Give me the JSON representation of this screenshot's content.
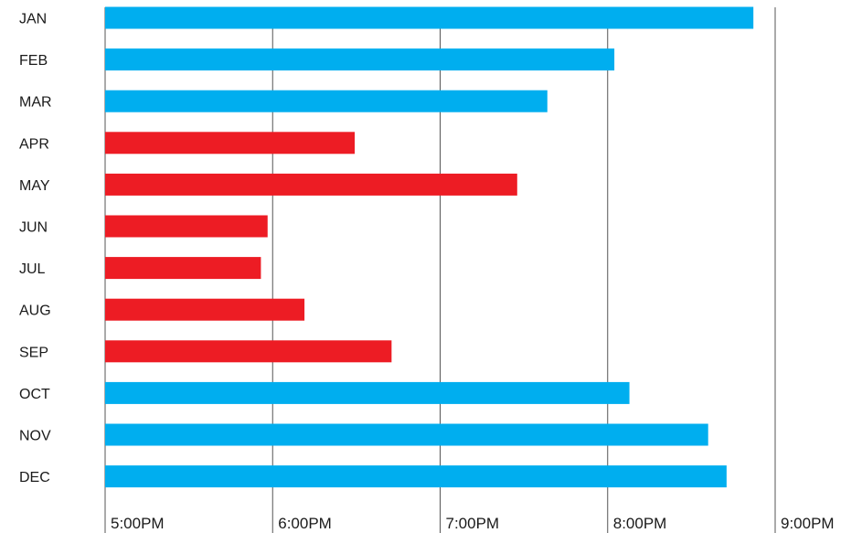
{
  "chart_data": {
    "type": "bar",
    "orientation": "horizontal",
    "title": "",
    "xlabel": "",
    "ylabel": "",
    "categories": [
      "JAN",
      "FEB",
      "MAR",
      "APR",
      "MAY",
      "JUN",
      "JUL",
      "AUG",
      "SEP",
      "OCT",
      "NOV",
      "DEC"
    ],
    "values_hours_after_5pm": [
      3.87,
      3.04,
      2.64,
      1.49,
      2.46,
      0.97,
      0.93,
      1.19,
      1.71,
      3.13,
      3.6,
      3.71
    ],
    "bar_colors": [
      "#00aeef",
      "#00aeef",
      "#00aeef",
      "#ed1c24",
      "#ed1c24",
      "#ed1c24",
      "#ed1c24",
      "#ed1c24",
      "#ed1c24",
      "#00aeef",
      "#00aeef",
      "#00aeef"
    ],
    "x_ticks": [
      "5:00PM",
      "6:00PM",
      "7:00PM",
      "8:00PM",
      "9:00PM"
    ],
    "xlim": [
      "5:00PM",
      "9:00PM"
    ],
    "grid": "vertical lines at each hour",
    "legend": "none"
  }
}
